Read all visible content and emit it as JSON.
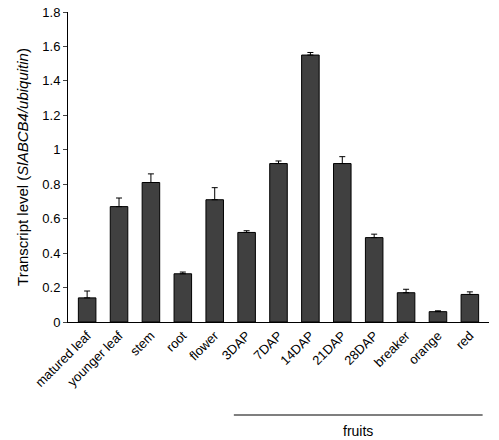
{
  "chart_data": {
    "type": "bar",
    "y_label": "Transcript level (SlABCB4/ubiquitin)",
    "categories": [
      "matured leaf",
      "younger leaf",
      "stem",
      "root",
      "flower",
      "3DAP",
      "7DAP",
      "14DAP",
      "21DAP",
      "28DAP",
      "breaker",
      "orange",
      "red"
    ],
    "values": [
      0.14,
      0.67,
      0.81,
      0.28,
      0.71,
      0.52,
      0.92,
      1.55,
      0.92,
      0.49,
      0.17,
      0.06,
      0.16
    ],
    "errors": [
      0.04,
      0.05,
      0.05,
      0.01,
      0.07,
      0.01,
      0.015,
      0.015,
      0.04,
      0.02,
      0.02,
      0.005,
      0.015
    ],
    "color": "#404040",
    "ylim": [
      0,
      1.8
    ],
    "yticks": [
      0,
      0.2,
      0.4,
      0.6,
      0.8,
      1,
      1.2,
      1.4,
      1.6,
      1.8
    ],
    "grid": false,
    "annotations": [
      {
        "text": "fruits",
        "from": "3DAP",
        "to": "red"
      }
    ]
  }
}
